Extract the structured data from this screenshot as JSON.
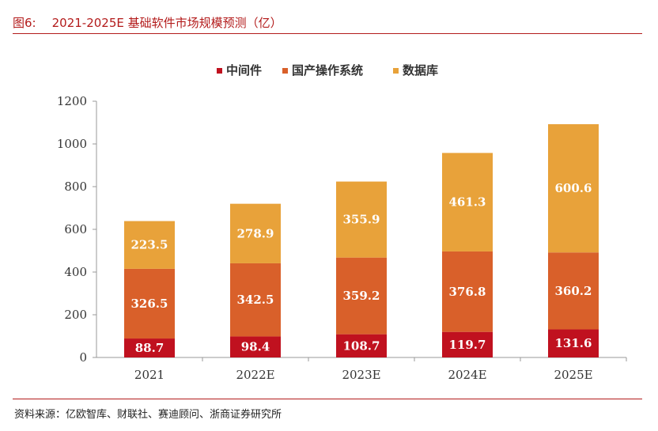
{
  "figure": {
    "label": "图6:",
    "title": "2021-2025E 基础软件市场规模预测（亿）"
  },
  "source": "资料来源：亿欧智库、财联社、赛迪顾问、浙商证券研究所",
  "colors": {
    "middleware": "#c0111f",
    "os": "#d9602a",
    "database": "#e8a23a",
    "axis": "#999999",
    "title_red": "#b31b1b"
  },
  "chart_data": {
    "type": "bar",
    "stacked": true,
    "title": "2021-2025E 基础软件市场规模预测（亿）",
    "categories": [
      "2021",
      "2022E",
      "2023E",
      "2024E",
      "2025E"
    ],
    "series": [
      {
        "name": "中间件",
        "values": [
          88.7,
          98.4,
          108.7,
          119.7,
          131.6
        ]
      },
      {
        "name": "国产操作系统",
        "values": [
          326.5,
          342.5,
          359.2,
          376.8,
          360.2
        ]
      },
      {
        "name": "数据库",
        "values": [
          223.5,
          278.9,
          355.9,
          461.3,
          600.6
        ]
      }
    ],
    "ylim": [
      0,
      1200
    ],
    "yticks": [
      0,
      200,
      400,
      600,
      800,
      1000,
      1200
    ],
    "xlabel": "",
    "ylabel": "",
    "legend_position": "top-center",
    "grid": false
  }
}
